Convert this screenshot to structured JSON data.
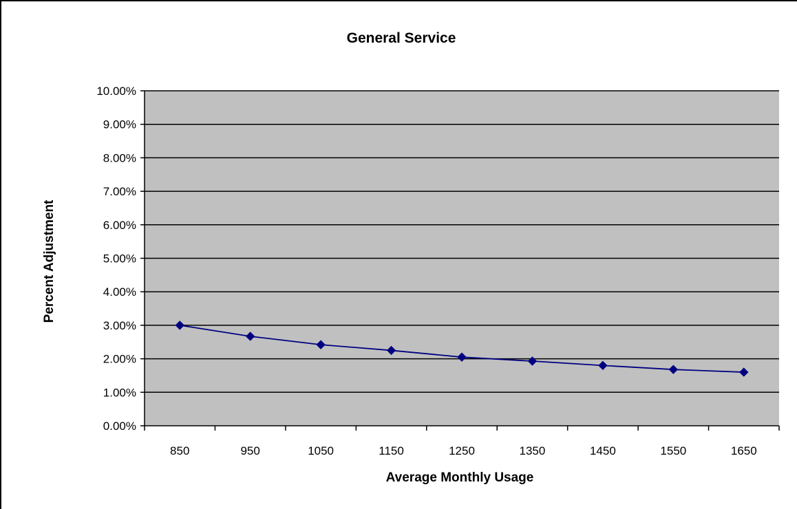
{
  "chart_data": {
    "type": "line",
    "title": "General Service",
    "xlabel": "Average Monthly Usage",
    "ylabel": "Percent Adjustment",
    "categories": [
      "850",
      "950",
      "1050",
      "1150",
      "1250",
      "1350",
      "1450",
      "1550",
      "1650"
    ],
    "y_tick_labels": [
      "0.00%",
      "1.00%",
      "2.00%",
      "3.00%",
      "4.00%",
      "5.00%",
      "6.00%",
      "7.00%",
      "8.00%",
      "9.00%",
      "10.00%"
    ],
    "ylim": [
      0,
      10
    ],
    "series": [
      {
        "values": [
          3.0,
          2.67,
          2.42,
          2.25,
          2.05,
          1.93,
          1.8,
          1.68,
          1.6
        ]
      }
    ],
    "grid": true,
    "legend": "none",
    "colors": {
      "plot_background": "#c0c0c0",
      "series_line": "#000080",
      "marker": "#000080",
      "gridline": "#000000"
    }
  }
}
